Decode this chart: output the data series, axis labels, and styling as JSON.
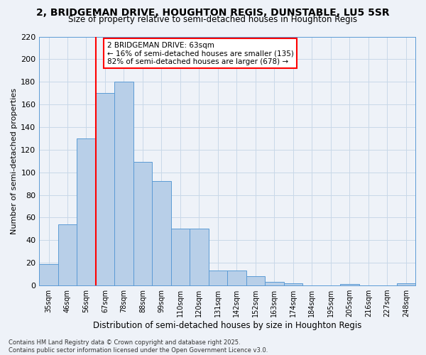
{
  "title": "2, BRIDGEMAN DRIVE, HOUGHTON REGIS, DUNSTABLE, LU5 5SR",
  "subtitle": "Size of property relative to semi-detached houses in Houghton Regis",
  "xlabel": "Distribution of semi-detached houses by size in Houghton Regis",
  "ylabel": "Number of semi-detached properties",
  "bar_values": [
    19,
    54,
    130,
    170,
    180,
    109,
    92,
    50,
    50,
    13,
    13,
    8,
    3,
    2,
    0,
    0,
    1,
    0,
    0,
    2
  ],
  "tick_labels": [
    "35sqm",
    "46sqm",
    "56sqm",
    "67sqm",
    "78sqm",
    "88sqm",
    "99sqm",
    "110sqm",
    "120sqm",
    "131sqm",
    "142sqm",
    "152sqm",
    "163sqm",
    "174sqm",
    "184sqm",
    "195sqm",
    "205sqm",
    "216sqm",
    "227sqm",
    "248sqm"
  ],
  "bar_color": "#b8cfe8",
  "bar_edge_color": "#5b9bd5",
  "grid_color": "#c8d8e8",
  "background_color": "#eef2f8",
  "vline_x_after_index": 2,
  "vline_color": "red",
  "annotation_text": "2 BRIDGEMAN DRIVE: 63sqm\n← 16% of semi-detached houses are smaller (135)\n82% of semi-detached houses are larger (678) →",
  "annotation_box_color": "white",
  "annotation_box_edge_color": "red",
  "ylim": [
    0,
    220
  ],
  "yticks": [
    0,
    20,
    40,
    60,
    80,
    100,
    120,
    140,
    160,
    180,
    200,
    220
  ],
  "footer_text": "Contains HM Land Registry data © Crown copyright and database right 2025.\nContains public sector information licensed under the Open Government Licence v3.0.",
  "title_fontsize": 10,
  "subtitle_fontsize": 8.5,
  "xlabel_fontsize": 8.5,
  "ylabel_fontsize": 8,
  "tick_fontsize": 7,
  "annotation_fontsize": 7.5,
  "footer_fontsize": 6
}
